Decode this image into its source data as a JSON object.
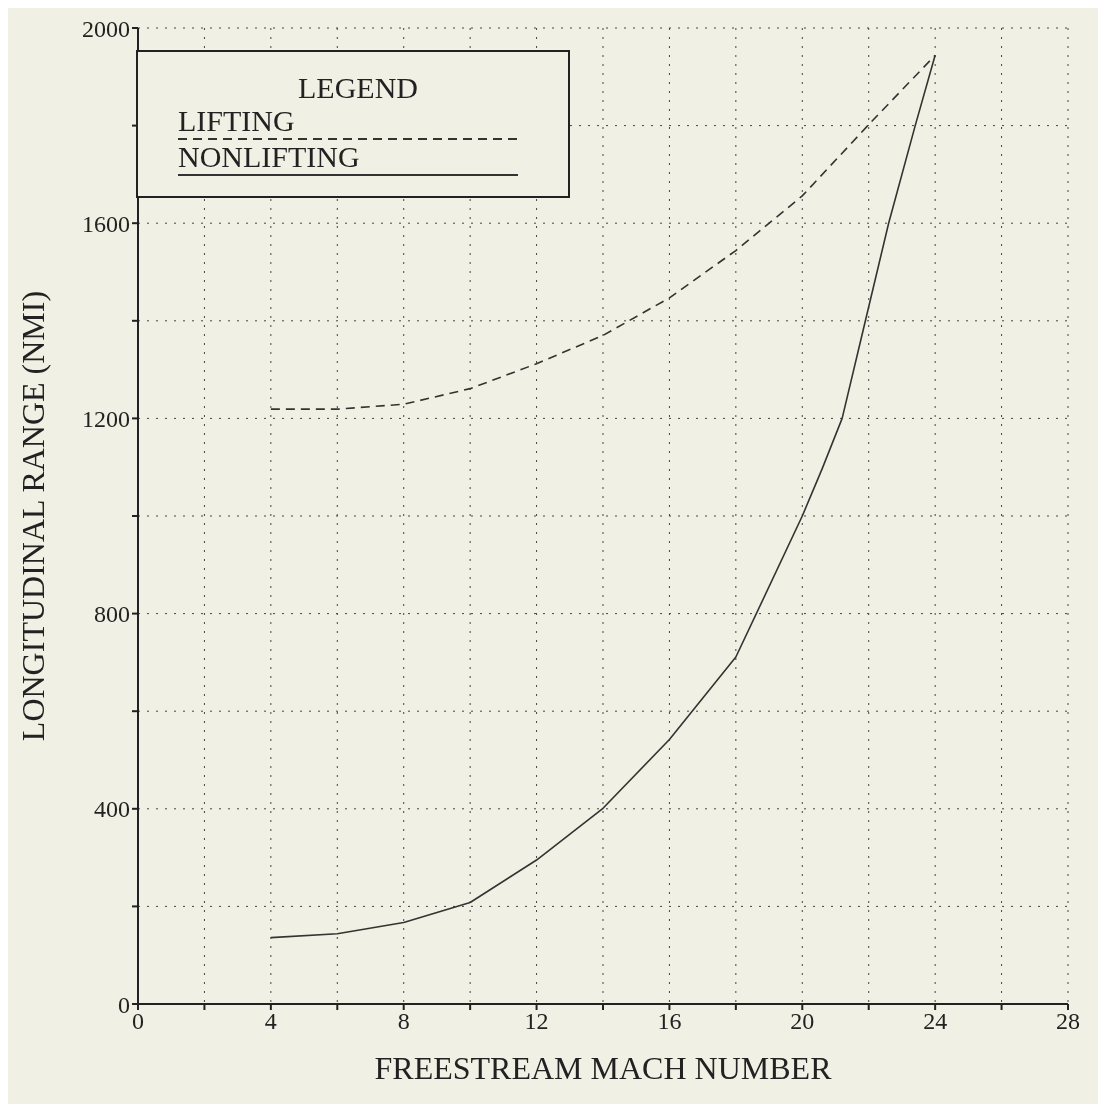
{
  "chart_data": {
    "type": "line",
    "xlabel": "FREESTREAM MACH NUMBER",
    "ylabel": "LONGITUDINAL RANGE (NMI)",
    "legend_title": "LEGEND",
    "legend": "top left",
    "grid": true,
    "marker": "none",
    "xlim": [
      0,
      28
    ],
    "xticks": [
      0,
      {
        "value": 2,
        "label": null
      },
      4,
      {
        "value": 6,
        "label": null
      },
      8,
      {
        "value": 10,
        "label": null
      },
      12,
      {
        "value": 14,
        "label": null
      },
      16,
      {
        "value": 18,
        "label": null
      },
      20,
      {
        "value": 22,
        "label": null
      },
      24,
      {
        "value": 26,
        "label": null
      },
      28
    ],
    "ylim": [
      0,
      2000
    ],
    "yticks": [
      0,
      {
        "value": 200,
        "label": null
      },
      400,
      {
        "value": 600,
        "label": null
      },
      800,
      {
        "value": 1000,
        "label": null
      },
      1200,
      {
        "value": 1400,
        "label": null
      },
      1600,
      {
        "value": 1800,
        "label": null
      },
      2000
    ],
    "series": [
      {
        "name": "LIFTING",
        "color": "#333333",
        "line_style": "dashed",
        "x": [
          4,
          6,
          8,
          10,
          12,
          14,
          16,
          18,
          20,
          22,
          24
        ],
        "values": [
          1219,
          1219,
          1229,
          1261,
          1312,
          1370,
          1447,
          1544,
          1656,
          1802,
          1944
        ]
      },
      {
        "name": "NONLIFTING",
        "color": "#333333",
        "line_style": "solid",
        "x": [
          4,
          6,
          8,
          10,
          12,
          14,
          16,
          18,
          20,
          20.6,
          21.2,
          21.9,
          22.6,
          23.4,
          24
        ],
        "values": [
          136,
          144,
          167,
          208,
          295,
          401,
          542,
          711,
          1000,
          1097,
          1200,
          1400,
          1600,
          1800,
          1944
        ]
      }
    ]
  }
}
